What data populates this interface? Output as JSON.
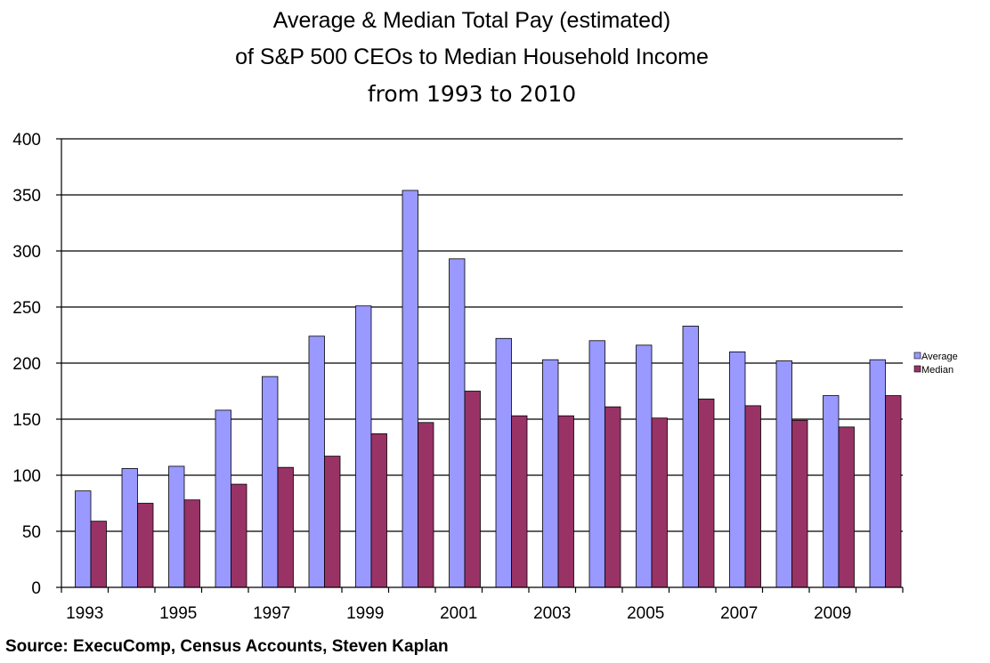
{
  "chart_data": {
    "type": "bar",
    "title_lines": [
      "Average & Median Total Pay (estimated)",
      "of S&P 500 CEOs to Median Household Income",
      "from 1993 to 2010"
    ],
    "xlabel": "",
    "ylabel": "",
    "x_tick_labels": [
      "1993",
      "1995",
      "1997",
      "1999",
      "2001",
      "2003",
      "2005",
      "2007",
      "2009"
    ],
    "y_tick_labels": [
      "0",
      "50",
      "100",
      "150",
      "200",
      "250",
      "300",
      "350",
      "400"
    ],
    "ylim": [
      0,
      400
    ],
    "grid": true,
    "legend_position": "right",
    "categories": [
      "1993",
      "1994",
      "1995",
      "1996",
      "1997",
      "1998",
      "1999",
      "2000",
      "2001",
      "2002",
      "2003",
      "2004",
      "2005",
      "2006",
      "2007",
      "2008",
      "2009",
      "2010"
    ],
    "series": [
      {
        "name": "Average",
        "color": "#9999ff",
        "values": [
          86,
          106,
          108,
          158,
          188,
          224,
          251,
          354,
          293,
          222,
          203,
          220,
          216,
          233,
          210,
          202,
          171,
          203
        ]
      },
      {
        "name": "Median",
        "color": "#993366",
        "values": [
          59,
          75,
          78,
          92,
          107,
          117,
          137,
          147,
          175,
          153,
          153,
          161,
          151,
          168,
          162,
          149,
          143,
          171
        ]
      }
    ]
  },
  "source": "Source:  ExecuComp, Census Accounts, Steven Kaplan"
}
